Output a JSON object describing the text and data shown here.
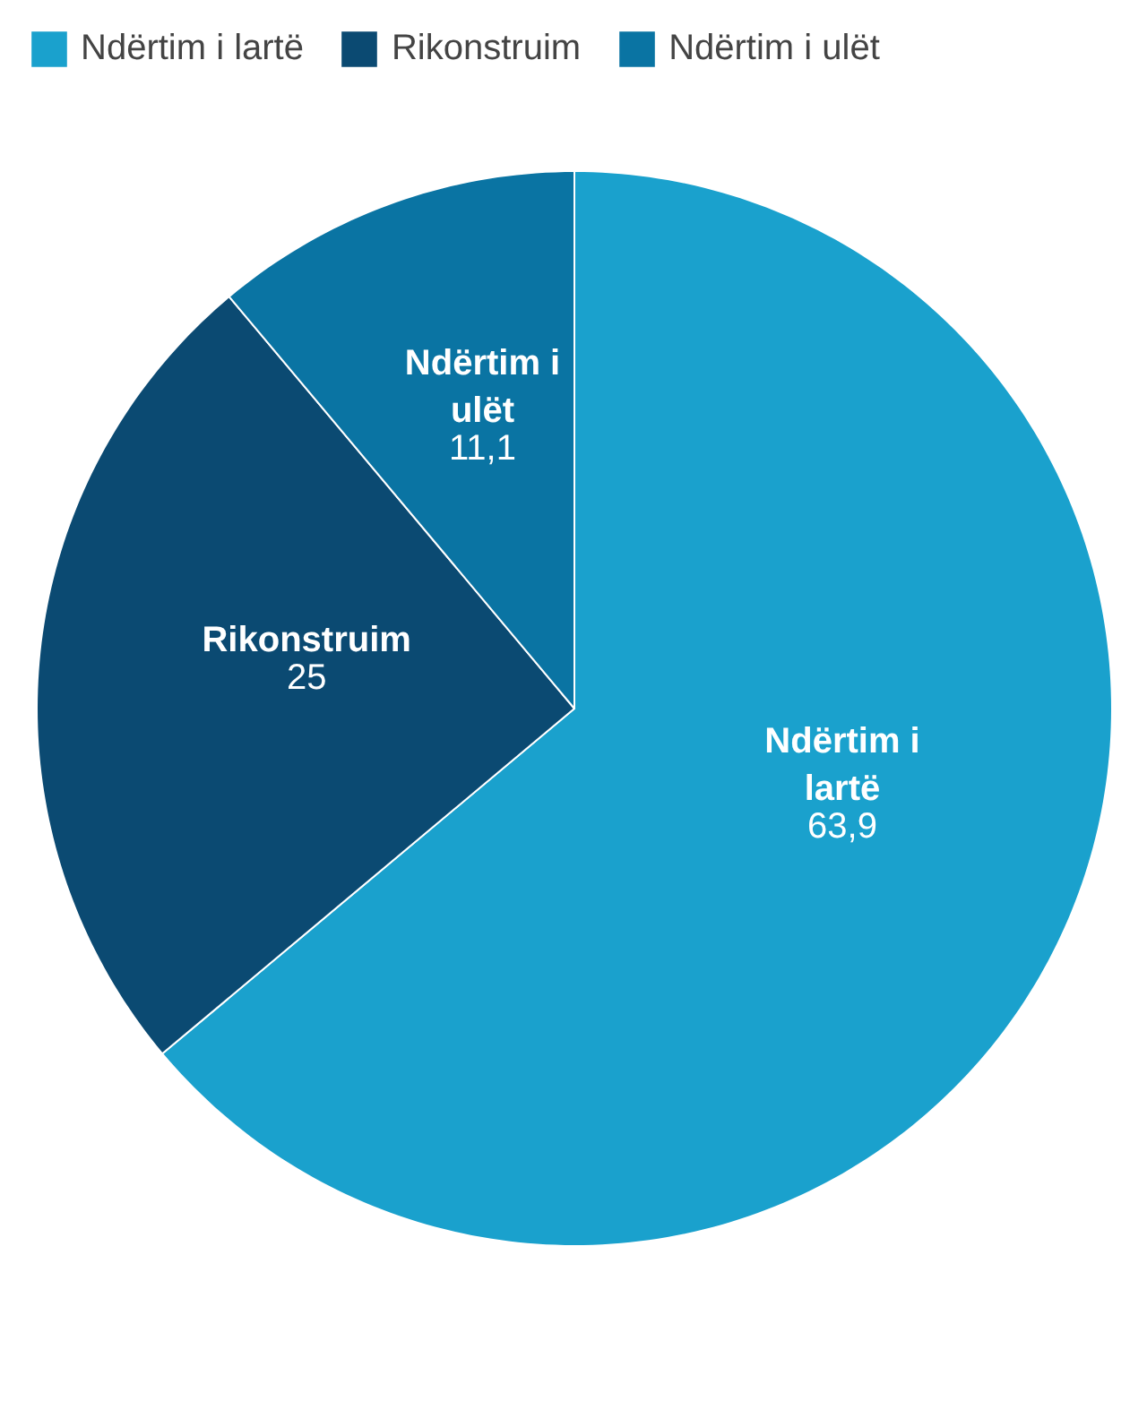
{
  "chart_data": {
    "type": "pie",
    "categories": [
      "Ndërtim i lartë",
      "Rikonstruim",
      "Ndërtim i ulët"
    ],
    "values": [
      63.9,
      25,
      11.1
    ],
    "colors": [
      "#1aa1cd",
      "#0b4a72",
      "#0a74a3"
    ],
    "value_labels": [
      "63,9",
      "25",
      "11,1"
    ],
    "legend": "top"
  }
}
